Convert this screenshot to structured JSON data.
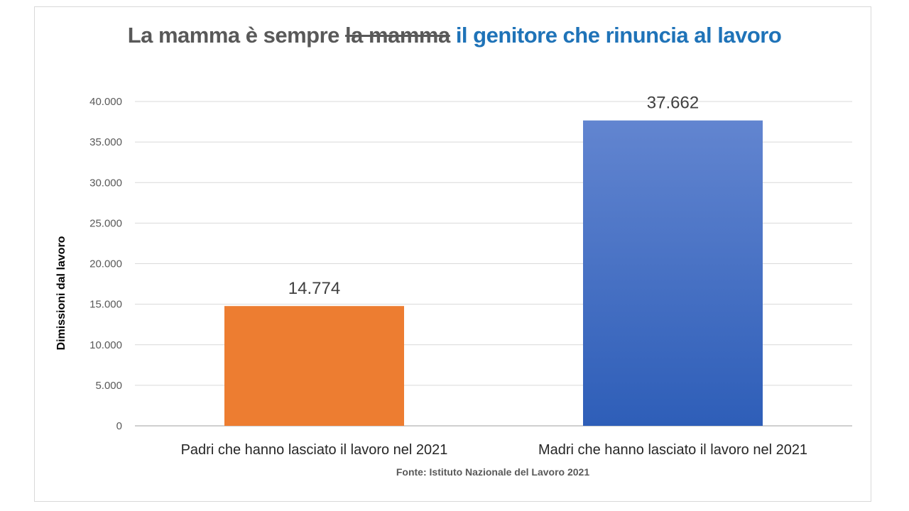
{
  "chart_data": {
    "type": "bar",
    "title": {
      "part1": "La mamma è sempre",
      "struck": "la mamma",
      "part2": "il genitore che rinuncia al lavoro"
    },
    "categories": [
      "Padri che hanno lasciato il lavoro nel 2021",
      "Madri che hanno lasciato il lavoro nel 2021"
    ],
    "values": [
      14774,
      37662
    ],
    "data_labels": [
      "14.774",
      "37.662"
    ],
    "colors": [
      "#ed7d31",
      "#3a6cc8"
    ],
    "xlabel": "",
    "ylabel": "Dimissioni dal lavoro",
    "ylim": [
      0,
      40000
    ],
    "yticks": [
      0,
      5000,
      10000,
      15000,
      20000,
      25000,
      30000,
      35000,
      40000
    ],
    "ytick_labels": [
      "0",
      "5.000",
      "10.000",
      "15.000",
      "20.000",
      "25.000",
      "30.000",
      "35.000",
      "40.000"
    ],
    "grid": true,
    "source": "Fonte: Istituto Nazionale del Lavoro 2021"
  }
}
